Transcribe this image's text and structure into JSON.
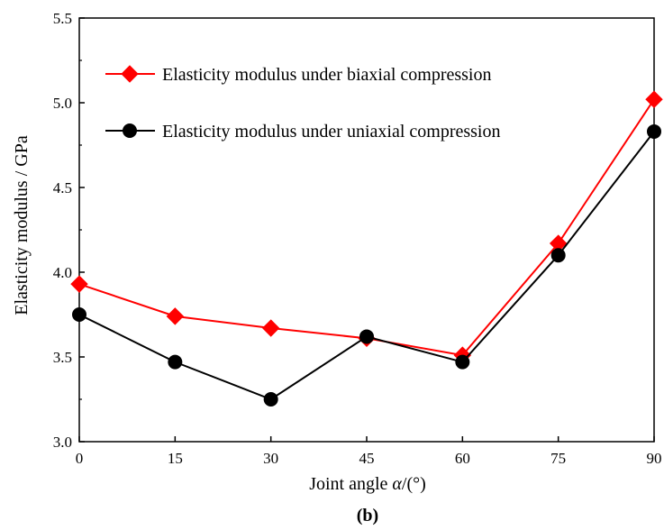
{
  "chart_data": {
    "type": "line",
    "x": [
      0,
      15,
      30,
      45,
      60,
      75,
      90
    ],
    "x_ticks": [
      "0",
      "15",
      "30",
      "45",
      "60",
      "75",
      "90"
    ],
    "y_ticks": [
      "3.0",
      "3.5",
      "4.0",
      "4.5",
      "5.0",
      "5.5"
    ],
    "xlim": [
      0,
      90
    ],
    "ylim": [
      3.0,
      5.5
    ],
    "xlabel_prefix": "Joint angle ",
    "xlabel_symbol": "α",
    "xlabel_suffix": "/(°)",
    "ylabel": "Elasticity modulus / GPa",
    "grid": false,
    "legend_position": "top-left",
    "series": [
      {
        "name": "Elasticity modulus under biaxial compression",
        "color": "#ff0000",
        "marker": "diamond",
        "values": [
          3.93,
          3.74,
          3.67,
          3.61,
          3.51,
          4.17,
          5.02
        ]
      },
      {
        "name": "Elasticity modulus under uniaxial compression",
        "color": "#000000",
        "marker": "circle",
        "values": [
          3.75,
          3.47,
          3.25,
          3.62,
          3.47,
          4.1,
          4.83
        ]
      }
    ]
  },
  "caption": "(b)"
}
